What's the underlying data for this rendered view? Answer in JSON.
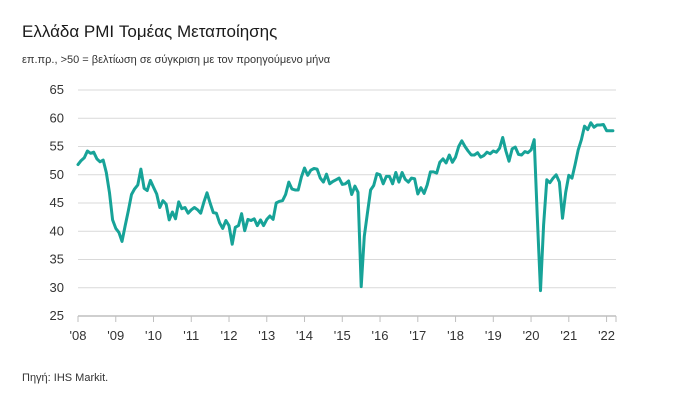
{
  "header": {
    "title": "Ελλάδα PMI Τομέας Μεταποίησης",
    "subtitle": "επ.πρ., >50 = βελτίωση σε σύγκριση με τον προηγούμενο μήνα"
  },
  "footer": {
    "source": "Πηγή: IHS Markit."
  },
  "colors": {
    "line": "#17a398",
    "grid": "#d9d9d9",
    "axis": "#bfbfbf"
  },
  "chart_data": {
    "type": "line",
    "title": "Ελλάδα PMI Τομέας Μεταποίησης",
    "subtitle": "επ.πρ., >50 = βελτίωση σε σύγκριση με τον προηγούμενο μήνα",
    "xlabel": "",
    "ylabel": "",
    "ylim": [
      25,
      65
    ],
    "yticks": [
      25,
      30,
      35,
      40,
      45,
      50,
      55,
      60,
      65
    ],
    "xlim": [
      "2008-01",
      "2022-04"
    ],
    "xtick_labels": [
      "'08",
      "'09",
      "'10",
      "'11",
      "'12",
      "'13",
      "'14",
      "'15",
      "'16",
      "'17",
      "'18",
      "'19",
      "'20",
      "'21",
      "'22"
    ],
    "xtick_positions": [
      "2008-01",
      "2009-01",
      "2010-01",
      "2011-01",
      "2012-01",
      "2013-01",
      "2014-01",
      "2015-01",
      "2016-01",
      "2017-01",
      "2018-01",
      "2019-01",
      "2020-01",
      "2021-01",
      "2022-01"
    ],
    "grid": "horizontal",
    "series": [
      {
        "points": [
          [
            "2008-01",
            51.8
          ],
          [
            "2008-02",
            52.5
          ],
          [
            "2008-03",
            53.0
          ],
          [
            "2008-04",
            54.2
          ],
          [
            "2008-05",
            53.8
          ],
          [
            "2008-06",
            54.0
          ],
          [
            "2008-07",
            52.8
          ],
          [
            "2008-08",
            52.3
          ],
          [
            "2008-09",
            52.6
          ],
          [
            "2008-10",
            50.4
          ],
          [
            "2008-11",
            46.8
          ],
          [
            "2008-12",
            42.0
          ],
          [
            "2009-01",
            40.5
          ],
          [
            "2009-02",
            39.8
          ],
          [
            "2009-03",
            38.2
          ],
          [
            "2009-04",
            41.0
          ],
          [
            "2009-05",
            43.6
          ],
          [
            "2009-06",
            46.5
          ],
          [
            "2009-07",
            47.5
          ],
          [
            "2009-08",
            48.2
          ],
          [
            "2009-09",
            51.0
          ],
          [
            "2009-10",
            47.6
          ],
          [
            "2009-11",
            47.2
          ],
          [
            "2009-12",
            49.0
          ],
          [
            "2010-01",
            47.8
          ],
          [
            "2010-02",
            46.6
          ],
          [
            "2010-03",
            44.2
          ],
          [
            "2010-04",
            45.4
          ],
          [
            "2010-05",
            44.8
          ],
          [
            "2010-06",
            42.0
          ],
          [
            "2010-07",
            43.4
          ],
          [
            "2010-08",
            42.2
          ],
          [
            "2010-09",
            45.2
          ],
          [
            "2010-10",
            44.0
          ],
          [
            "2010-11",
            44.2
          ],
          [
            "2010-12",
            43.2
          ],
          [
            "2011-01",
            43.8
          ],
          [
            "2011-02",
            44.2
          ],
          [
            "2011-03",
            43.8
          ],
          [
            "2011-04",
            43.2
          ],
          [
            "2011-05",
            45.1
          ],
          [
            "2011-06",
            46.8
          ],
          [
            "2011-07",
            45.0
          ],
          [
            "2011-08",
            43.3
          ],
          [
            "2011-09",
            43.2
          ],
          [
            "2011-10",
            41.5
          ],
          [
            "2011-11",
            40.5
          ],
          [
            "2011-12",
            41.9
          ],
          [
            "2012-01",
            41.0
          ],
          [
            "2012-02",
            37.7
          ],
          [
            "2012-03",
            40.7
          ],
          [
            "2012-04",
            41.0
          ],
          [
            "2012-05",
            43.1
          ],
          [
            "2012-06",
            40.1
          ],
          [
            "2012-07",
            42.1
          ],
          [
            "2012-08",
            41.9
          ],
          [
            "2012-09",
            42.2
          ],
          [
            "2012-10",
            41.0
          ],
          [
            "2012-11",
            42.0
          ],
          [
            "2012-12",
            41.0
          ],
          [
            "2013-01",
            42.1
          ],
          [
            "2013-02",
            42.7
          ],
          [
            "2013-03",
            42.1
          ],
          [
            "2013-04",
            45.0
          ],
          [
            "2013-05",
            45.3
          ],
          [
            "2013-06",
            45.4
          ],
          [
            "2013-07",
            46.5
          ],
          [
            "2013-08",
            48.7
          ],
          [
            "2013-09",
            47.5
          ],
          [
            "2013-10",
            47.3
          ],
          [
            "2013-11",
            47.3
          ],
          [
            "2013-12",
            49.6
          ],
          [
            "2014-01",
            51.2
          ],
          [
            "2014-02",
            49.9
          ],
          [
            "2014-03",
            50.8
          ],
          [
            "2014-04",
            51.1
          ],
          [
            "2014-05",
            51.0
          ],
          [
            "2014-06",
            49.4
          ],
          [
            "2014-07",
            48.7
          ],
          [
            "2014-08",
            50.1
          ],
          [
            "2014-09",
            48.4
          ],
          [
            "2014-10",
            48.8
          ],
          [
            "2014-11",
            49.1
          ],
          [
            "2014-12",
            49.4
          ],
          [
            "2015-01",
            48.3
          ],
          [
            "2015-02",
            48.4
          ],
          [
            "2015-03",
            48.9
          ],
          [
            "2015-04",
            46.5
          ],
          [
            "2015-05",
            48.0
          ],
          [
            "2015-06",
            46.9
          ],
          [
            "2015-07",
            30.2
          ],
          [
            "2015-08",
            39.1
          ],
          [
            "2015-09",
            43.3
          ],
          [
            "2015-10",
            47.3
          ],
          [
            "2015-11",
            48.1
          ],
          [
            "2015-12",
            50.2
          ],
          [
            "2016-01",
            50.0
          ],
          [
            "2016-02",
            48.4
          ],
          [
            "2016-03",
            49.7
          ],
          [
            "2016-04",
            49.7
          ],
          [
            "2016-05",
            48.4
          ],
          [
            "2016-06",
            50.4
          ],
          [
            "2016-07",
            48.7
          ],
          [
            "2016-08",
            50.4
          ],
          [
            "2016-09",
            49.2
          ],
          [
            "2016-10",
            48.7
          ],
          [
            "2016-11",
            49.4
          ],
          [
            "2016-12",
            49.3
          ],
          [
            "2017-01",
            46.6
          ],
          [
            "2017-02",
            47.7
          ],
          [
            "2017-03",
            46.7
          ],
          [
            "2017-04",
            48.2
          ],
          [
            "2017-05",
            50.5
          ],
          [
            "2017-06",
            50.5
          ],
          [
            "2017-07",
            50.3
          ],
          [
            "2017-08",
            52.2
          ],
          [
            "2017-09",
            52.8
          ],
          [
            "2017-10",
            52.1
          ],
          [
            "2017-11",
            53.5
          ],
          [
            "2017-12",
            52.2
          ],
          [
            "2018-01",
            53.1
          ],
          [
            "2018-02",
            55.0
          ],
          [
            "2018-03",
            56.0
          ],
          [
            "2018-04",
            55.0
          ],
          [
            "2018-05",
            54.2
          ],
          [
            "2018-06",
            53.5
          ],
          [
            "2018-07",
            53.5
          ],
          [
            "2018-08",
            53.9
          ],
          [
            "2018-09",
            53.1
          ],
          [
            "2018-10",
            53.4
          ],
          [
            "2018-11",
            54.0
          ],
          [
            "2018-12",
            53.7
          ],
          [
            "2019-01",
            54.2
          ],
          [
            "2019-02",
            54.0
          ],
          [
            "2019-03",
            54.7
          ],
          [
            "2019-04",
            56.6
          ],
          [
            "2019-05",
            54.2
          ],
          [
            "2019-06",
            52.4
          ],
          [
            "2019-07",
            54.6
          ],
          [
            "2019-08",
            54.9
          ],
          [
            "2019-09",
            53.6
          ],
          [
            "2019-10",
            53.5
          ],
          [
            "2019-11",
            54.1
          ],
          [
            "2019-12",
            53.9
          ],
          [
            "2020-01",
            54.4
          ],
          [
            "2020-02",
            56.2
          ],
          [
            "2020-03",
            42.5
          ],
          [
            "2020-04",
            29.5
          ],
          [
            "2020-05",
            41.1
          ],
          [
            "2020-06",
            49.1
          ],
          [
            "2020-07",
            48.6
          ],
          [
            "2020-08",
            49.4
          ],
          [
            "2020-09",
            50.0
          ],
          [
            "2020-10",
            48.7
          ],
          [
            "2020-11",
            42.3
          ],
          [
            "2020-12",
            46.9
          ],
          [
            "2021-01",
            49.9
          ],
          [
            "2021-02",
            49.4
          ],
          [
            "2021-03",
            51.8
          ],
          [
            "2021-04",
            54.4
          ],
          [
            "2021-05",
            56.2
          ],
          [
            "2021-06",
            58.6
          ],
          [
            "2021-07",
            58.0
          ],
          [
            "2021-08",
            59.2
          ],
          [
            "2021-09",
            58.4
          ],
          [
            "2021-10",
            58.8
          ],
          [
            "2021-11",
            58.8
          ],
          [
            "2021-12",
            58.9
          ],
          [
            "2022-01",
            57.8
          ],
          [
            "2022-02",
            57.8
          ],
          [
            "2022-03",
            57.8
          ]
        ]
      }
    ]
  }
}
